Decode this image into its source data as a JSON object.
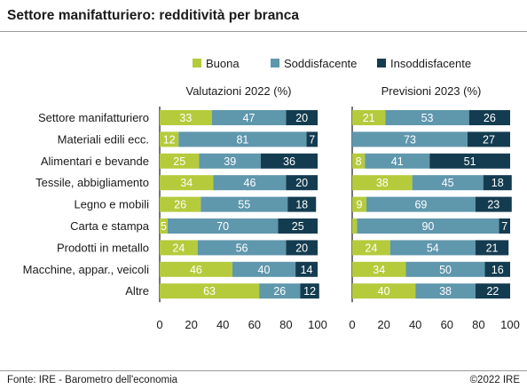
{
  "title": "Settore manifatturiero: redditività per branca",
  "footer": {
    "source": "Fonte: IRE - Barometro dell'economia",
    "copyright": "©2022 IRE"
  },
  "colors": {
    "buona": "#b5cb3c",
    "soddisfacente": "#5f97ad",
    "insoddisfacente": "#143c50"
  },
  "chart_data": {
    "type": "bar",
    "stacked": true,
    "orientation": "horizontal",
    "legend": [
      "Buona",
      "Soddisfacente",
      "Insoddisfacente"
    ],
    "legend_position": "top",
    "categories": [
      "Settore manifatturiero",
      "Materiali edili ecc.",
      "Alimentari e bevande",
      "Tessile, abbigliamento",
      "Legno e mobili",
      "Carta e stampa",
      "Prodotti in metallo",
      "Macchine, appar., veicoli",
      "Altre"
    ],
    "xlim": [
      0,
      100
    ],
    "xticks": [
      0,
      20,
      40,
      60,
      80,
      100
    ],
    "panels": [
      {
        "title": "Valutazioni 2022 (%)",
        "series": [
          {
            "name": "Buona",
            "values": [
              33,
              12,
              25,
              34,
              26,
              5,
              24,
              46,
              63
            ]
          },
          {
            "name": "Soddisfacente",
            "values": [
              47,
              81,
              39,
              46,
              55,
              70,
              56,
              40,
              26
            ]
          },
          {
            "name": "Insoddisfacente",
            "values": [
              20,
              7,
              36,
              20,
              18,
              25,
              20,
              14,
              12
            ]
          }
        ]
      },
      {
        "title": "Previsioni 2023 (%)",
        "series": [
          {
            "name": "Buona",
            "values": [
              21,
              0,
              8,
              38,
              9,
              3,
              24,
              34,
              40
            ]
          },
          {
            "name": "Soddisfacente",
            "values": [
              53,
              73,
              41,
              45,
              69,
              90,
              54,
              50,
              38
            ]
          },
          {
            "name": "Insoddisfacente",
            "values": [
              26,
              27,
              51,
              18,
              23,
              7,
              21,
              16,
              22
            ]
          }
        ]
      }
    ]
  }
}
